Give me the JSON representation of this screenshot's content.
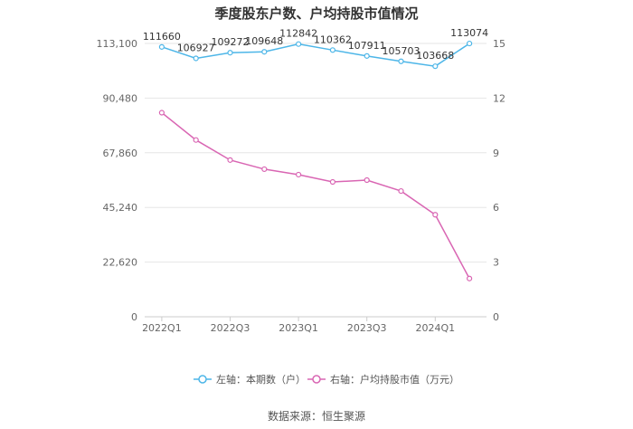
{
  "title": "季度股东户数、户均持股市值情况",
  "source": "数据来源：恒生聚源",
  "colors": {
    "left_series": "#4db6e8",
    "right_series": "#d966b3",
    "grid": "#e6e6e6",
    "axis_text": "#666666"
  },
  "chart_data": {
    "type": "line",
    "x": [
      "2022Q1",
      "2022Q2",
      "2022Q3",
      "2022Q4",
      "2023Q1",
      "2023Q2",
      "2023Q3",
      "2023Q4",
      "2024Q1",
      "2024Q2"
    ],
    "x_tick_labels": [
      "2022Q1",
      "2022Q3",
      "2023Q1",
      "2023Q3",
      "2024Q1"
    ],
    "left_axis": {
      "ylim": [
        0,
        113100
      ],
      "ticks": [
        "0",
        "22,620",
        "45,240",
        "67,860",
        "90,480",
        "113,100"
      ]
    },
    "right_axis": {
      "ylim": [
        0,
        15
      ],
      "ticks": [
        "0",
        "3",
        "6",
        "9",
        "12",
        "15"
      ]
    },
    "grid": true,
    "legend_position": "bottom",
    "series": [
      {
        "name": "左轴：本期数（户）",
        "axis": "left",
        "values": [
          111660,
          106927,
          109272,
          109648,
          112842,
          110362,
          107911,
          105703,
          103668,
          113074
        ],
        "data_labels": [
          "111660",
          "106927",
          "109272",
          "109648",
          "112842",
          "110362",
          "107911",
          "105703",
          "103668",
          "113074"
        ]
      },
      {
        "name": "右轴：户均持股市值（万元）",
        "axis": "right",
        "values": [
          11.2,
          9.7,
          8.6,
          8.1,
          7.8,
          7.4,
          7.5,
          6.9,
          5.6,
          2.1
        ]
      }
    ]
  }
}
